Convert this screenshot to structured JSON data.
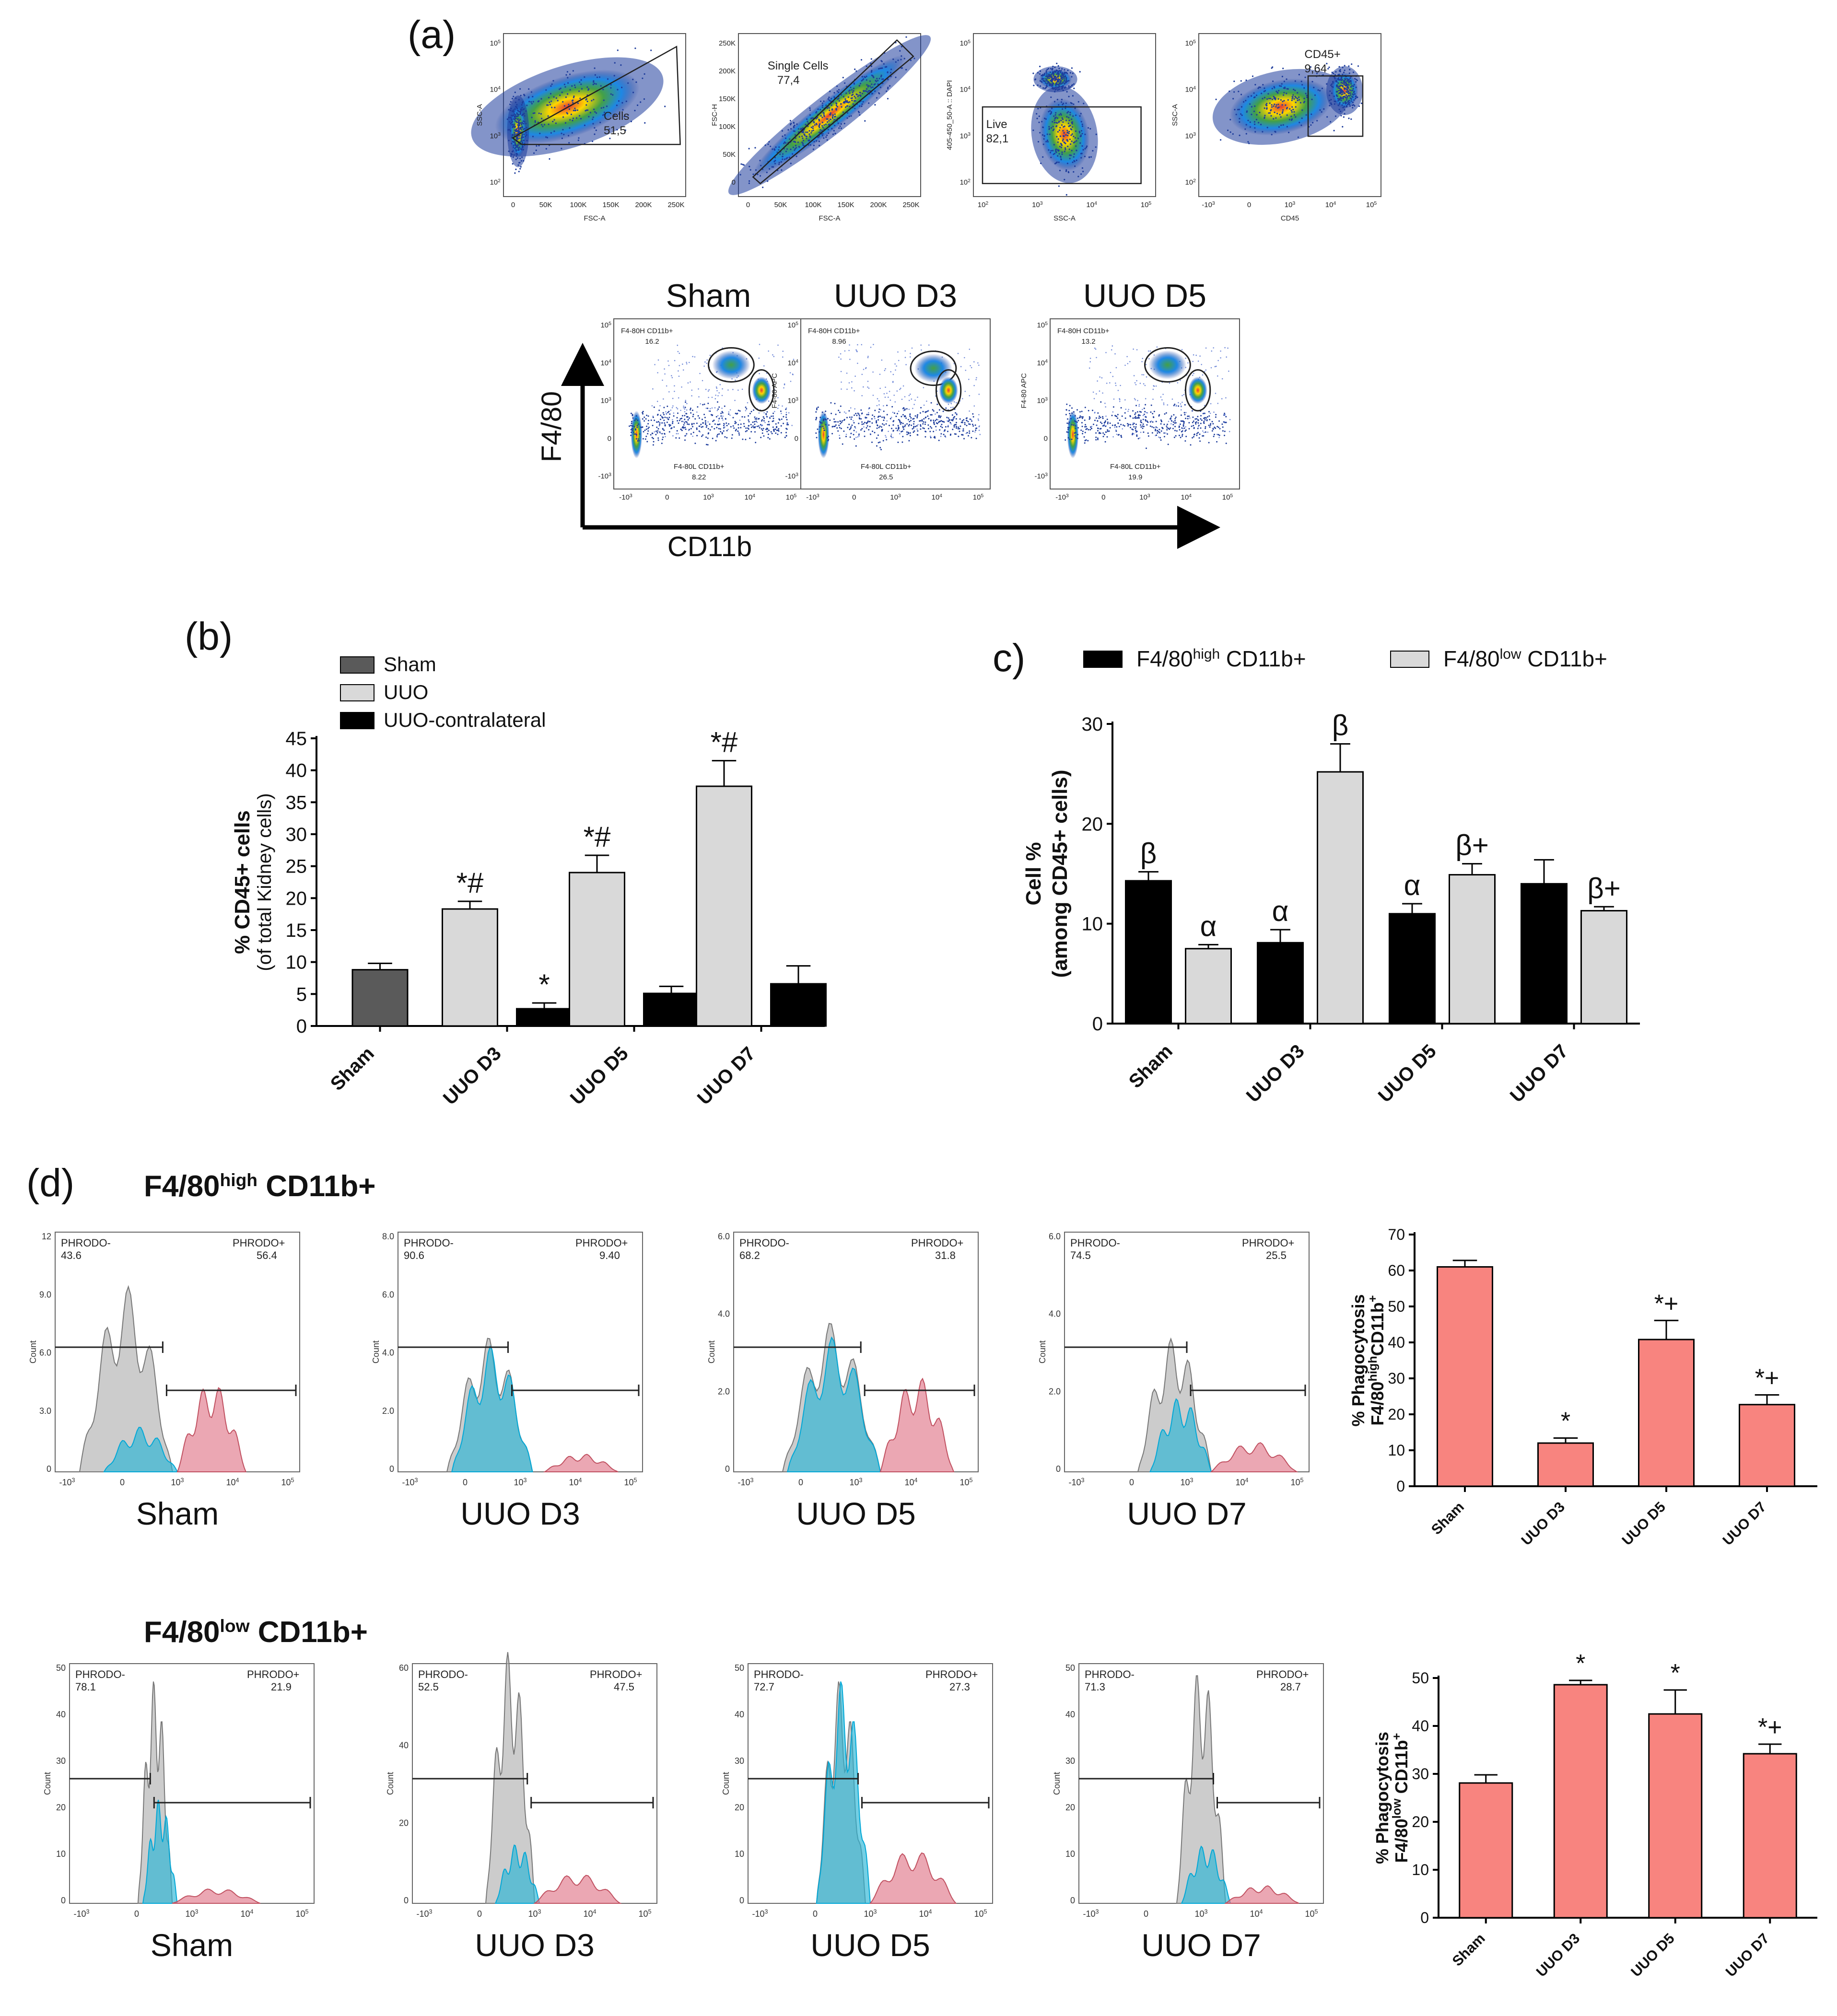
{
  "panel_labels": {
    "a": "(a)",
    "b": "(b)",
    "c": "c)",
    "d": "(d)"
  },
  "gating": {
    "plots": [
      {
        "gate_name": "Cells",
        "gate_value": "51,5",
        "x_label": "FSC-A",
        "y_label": "SSC-A",
        "x_ticks": [
          "0",
          "50K",
          "100K",
          "150K",
          "200K",
          "250K"
        ],
        "y_ticks": [
          "10^5",
          "10^4",
          "10^3",
          "10^2"
        ]
      },
      {
        "gate_name": "Single Cells",
        "gate_value": "77,4",
        "x_label": "FSC-A",
        "y_label": "FSC-H",
        "x_ticks": [
          "0",
          "50K",
          "100K",
          "150K",
          "200K",
          "250K"
        ],
        "y_ticks": [
          "250K",
          "200K",
          "150K",
          "100K",
          "50K",
          "0"
        ]
      },
      {
        "gate_name": "Live",
        "gate_value": "82,1",
        "x_label": "SSC-A",
        "y_label": "405-450_50-A :: DAPI",
        "x_ticks": [
          "10^2",
          "10^3",
          "10^4",
          "10^5"
        ],
        "y_ticks": [
          "10^5",
          "10^4",
          "10^3",
          "10^2"
        ]
      },
      {
        "gate_name": "CD45+",
        "gate_value": "9,64",
        "x_label": "CD45",
        "y_label": "SSC-A",
        "x_ticks": [
          "-10^3",
          "0",
          "10^3",
          "10^4",
          "10^5"
        ],
        "y_ticks": [
          "10^5",
          "10^4",
          "10^3",
          "10^2"
        ]
      }
    ]
  },
  "facs": {
    "x_axis": "CD11b",
    "y_axis": "F4/80",
    "panels": [
      {
        "title": "Sham",
        "high_gate": "F4-80H CD11b+",
        "high_value": "16.2",
        "low_gate": "F4-80L CD11b+",
        "low_value": "8.22",
        "y_label": ""
      },
      {
        "title": "UUO D3",
        "high_gate": "F4-80H CD11b+",
        "high_value": "8.96",
        "low_gate": "F4-80L CD11b+",
        "low_value": "26.5",
        "y_label": "F4-80 APC"
      },
      {
        "title": "UUO D5",
        "high_gate": "F4-80H CD11b+",
        "high_value": "13.2",
        "low_gate": "F4-80L CD11b+",
        "low_value": "19.9",
        "y_label": "F4-80 APC"
      }
    ],
    "x_ticks": [
      "-10^3",
      "0",
      "10^3",
      "10^4",
      "10^5"
    ],
    "y_ticks": [
      "10^5",
      "10^4",
      "10^3",
      "0",
      "-10^3"
    ]
  },
  "chart_data": [
    {
      "id": "b",
      "type": "bar",
      "categories": [
        "Sham",
        "UUO D3",
        "UUO D5",
        "UUO D7"
      ],
      "ylabel": "% CD45+ cells",
      "ylabel2": "(of total Kidney cells)",
      "ylim": [
        0,
        45
      ],
      "yticks": [
        0,
        5,
        10,
        15,
        20,
        25,
        30,
        35,
        40,
        45
      ],
      "legend_position": "top-left",
      "series": [
        {
          "name": "Sham",
          "color": "#5a5a5a",
          "values": [
            8.8,
            null,
            null,
            null
          ],
          "errors": [
            1.0,
            null,
            null,
            null
          ],
          "annotations": [
            "",
            "",
            "",
            ""
          ]
        },
        {
          "name": "UUO",
          "color": "#d9d9d9",
          "values": [
            null,
            18.3,
            24.0,
            37.5
          ],
          "errors": [
            null,
            1.2,
            2.7,
            4.0
          ],
          "annotations": [
            "",
            "*#",
            "*#",
            "*#"
          ]
        },
        {
          "name": "UUO-contralateral",
          "color": "#000000",
          "values": [
            null,
            2.7,
            5.1,
            6.6
          ],
          "errors": [
            null,
            0.9,
            1.1,
            2.8
          ],
          "annotations": [
            "",
            "*",
            "",
            ""
          ]
        }
      ]
    },
    {
      "id": "c",
      "type": "bar",
      "categories": [
        "Sham",
        "UUO D3",
        "UUO D5",
        "UUO D7"
      ],
      "ylabel": "Cell %",
      "ylabel2": "(among CD45+ cells)",
      "ylim": [
        0,
        30
      ],
      "yticks": [
        0,
        10,
        20,
        30
      ],
      "legend_position": "top",
      "series": [
        {
          "name": "F4/80",
          "name_sup": "high",
          "name_suffix": " CD11b+",
          "color": "#000000",
          "values": [
            14.3,
            8.1,
            11.0,
            14.0
          ],
          "errors": [
            0.9,
            1.3,
            1.0,
            2.4
          ],
          "annotations": [
            "β",
            "α",
            "α",
            ""
          ]
        },
        {
          "name": "F4/80",
          "name_sup": "low",
          "name_suffix": " CD11b+",
          "color": "#d9d9d9",
          "values": [
            7.5,
            25.2,
            14.9,
            11.3
          ],
          "errors": [
            0.4,
            2.8,
            1.1,
            0.4
          ],
          "annotations": [
            "α",
            "β",
            "β+",
            "β+"
          ]
        }
      ]
    },
    {
      "id": "d-high",
      "type": "bar",
      "categories": [
        "Sham",
        "UUO D3",
        "UUO D5",
        "UUO D7"
      ],
      "ylabel": "% Phagocytosis",
      "ylabel2": "F4/80highCD11b+",
      "ylim": [
        0,
        70
      ],
      "yticks": [
        0,
        10,
        20,
        30,
        40,
        50,
        60,
        70
      ],
      "series": [
        {
          "name": "",
          "color": "#f8847f",
          "values": [
            61.0,
            12.0,
            40.8,
            22.7
          ],
          "errors": [
            1.8,
            1.4,
            5.3,
            2.7
          ],
          "annotations": [
            "",
            "*",
            "*+",
            "*+"
          ]
        }
      ]
    },
    {
      "id": "d-low",
      "type": "bar",
      "categories": [
        "Sham",
        "UUO D3",
        "UUO D5",
        "UUO D7"
      ],
      "ylabel": "% Phagocytosis",
      "ylabel2": "F4/80lowCD11b+",
      "ylim": [
        0,
        50
      ],
      "yticks": [
        0,
        10,
        20,
        30,
        40,
        50
      ],
      "series": [
        {
          "name": "",
          "color": "#f8847f",
          "values": [
            28.1,
            48.6,
            42.5,
            34.2
          ],
          "errors": [
            1.7,
            0.9,
            5.0,
            2.0
          ],
          "annotations": [
            "",
            "*",
            "*",
            "*+"
          ]
        }
      ]
    }
  ],
  "phago": {
    "high_title": "F4/80",
    "high_sup": "high",
    "high_suffix": " CD11b+",
    "low_title": "F4/80",
    "low_sup": "low",
    "low_suffix": " CD11b+",
    "neg_label": "PHRODO-",
    "pos_label": "PHRODO+",
    "high_rows": [
      {
        "name": "Sham",
        "neg": "43.6",
        "pos": "56.4",
        "y_ticks": [
          "12",
          "9.0",
          "6.0",
          "3.0",
          "0"
        ]
      },
      {
        "name": "UUO D3",
        "neg": "90.6",
        "pos": "9.40",
        "y_ticks": [
          "8.0",
          "6.0",
          "4.0",
          "2.0",
          "0"
        ]
      },
      {
        "name": "UUO D5",
        "neg": "68.2",
        "pos": "31.8",
        "y_ticks": [
          "6.0",
          "4.0",
          "2.0",
          "0"
        ]
      },
      {
        "name": "UUO D7",
        "neg": "74.5",
        "pos": "25.5",
        "y_ticks": [
          "6.0",
          "4.0",
          "2.0",
          "0"
        ]
      }
    ],
    "low_rows": [
      {
        "name": "Sham",
        "neg": "78.1",
        "pos": "21.9",
        "y_ticks": [
          "50",
          "40",
          "30",
          "20",
          "10",
          "0"
        ]
      },
      {
        "name": "UUO D3",
        "neg": "52.5",
        "pos": "47.5",
        "y_ticks": [
          "60",
          "40",
          "20",
          "0"
        ]
      },
      {
        "name": "UUO D5",
        "neg": "72.7",
        "pos": "27.3",
        "y_ticks": [
          "50",
          "40",
          "30",
          "20",
          "10",
          "0"
        ]
      },
      {
        "name": "UUO D7",
        "neg": "71.3",
        "pos": "28.7",
        "y_ticks": [
          "50",
          "40",
          "30",
          "20",
          "10",
          "0"
        ]
      }
    ],
    "count_label": "Count",
    "x_ticks": [
      "-10^3",
      "0",
      "10^3",
      "10^4",
      "10^5"
    ]
  }
}
